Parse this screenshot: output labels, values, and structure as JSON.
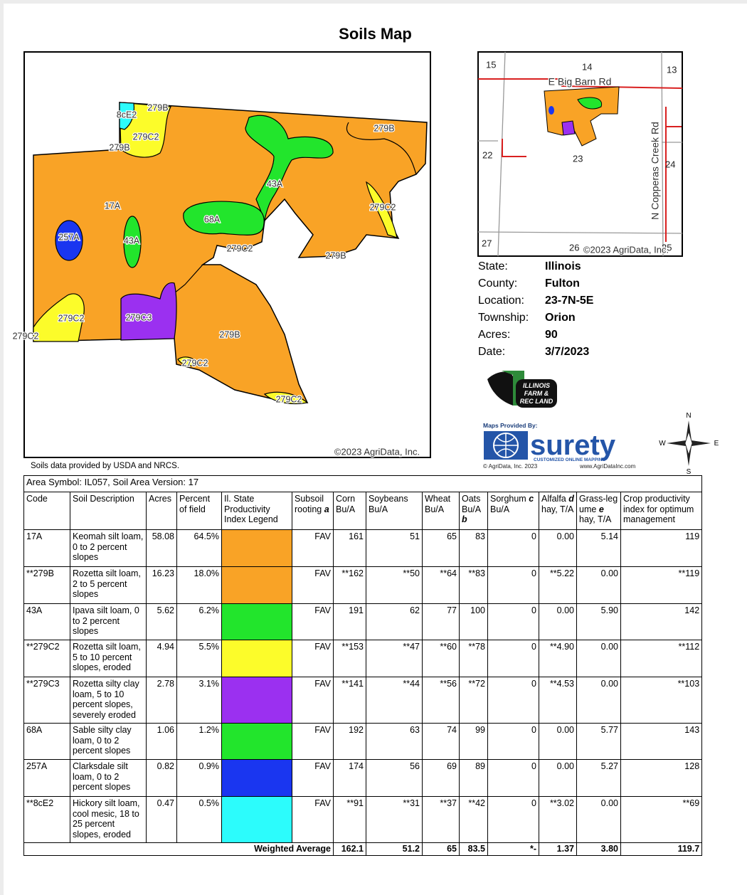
{
  "title": "Soils Map",
  "map": {
    "labels": [
      "8cE2",
      "279B",
      "279C2",
      "279B",
      "279B",
      "43A",
      "17A",
      "68A",
      "279C2",
      "257A",
      "43A",
      "279C2",
      "279B",
      "279C2",
      "279C3",
      "279C2",
      "279B",
      "279C2",
      "279C2"
    ],
    "copyright": "©2023 AgriData, Inc."
  },
  "source_note": "Soils data provided by USDA and NRCS.",
  "locator": {
    "labels": [
      "15",
      "14",
      "13",
      "E Big Barn Rd",
      "22",
      "23",
      "24",
      "27",
      "26",
      "25",
      "N Copperas Creek Rd"
    ],
    "copyright": "©2023 AgriData, Inc."
  },
  "info": [
    [
      "State:",
      "Illinois"
    ],
    [
      "County:",
      "Fulton"
    ],
    [
      "Location:",
      "23-7N-5E"
    ],
    [
      "Township:",
      "Orion"
    ],
    [
      "Acres:",
      "90"
    ],
    [
      "Date:",
      "3/7/2023"
    ]
  ],
  "logos": {
    "farm": [
      "ILLINOIS",
      "FARM &",
      "REC LAND"
    ],
    "maps_provided": "Maps Provided By:",
    "surety": "surety",
    "surety_tag": "CUSTOMIZED ONLINE MAPPING",
    "agridata": "© AgriData, Inc. 2023",
    "url": "www.AgriDataInc.com",
    "compass": [
      "N",
      "E",
      "S",
      "W"
    ]
  },
  "table": {
    "area_symbol": "Area Symbol: IL057, Soil Area Version: 17",
    "headers": [
      {
        "text": "Code"
      },
      {
        "text": "Soil Description"
      },
      {
        "text": "Acres"
      },
      {
        "text": "Percent of field"
      },
      {
        "text": "Il. State Productivity Index Legend"
      },
      {
        "text": "Subsoil rooting",
        "note": "a"
      },
      {
        "text": "Corn Bu/A"
      },
      {
        "text": "Soybeans Bu/A"
      },
      {
        "text": "Wheat Bu/A"
      },
      {
        "text": "Oats Bu/A",
        "note": "b"
      },
      {
        "text": "Sorghum",
        "note": "c",
        "after": "Bu/A"
      },
      {
        "text": "Alfalfa",
        "note": "d",
        "after": "hay, T/A"
      },
      {
        "text": "Grass-leg ume",
        "note": "e",
        "after": "hay, T/A"
      },
      {
        "text": "Crop productivity index for optimum management"
      }
    ],
    "rows": [
      {
        "code": "17A",
        "description": "Keomah silt loam, 0 to 2 percent slopes",
        "acres": "58.08",
        "percent": "64.5%",
        "color": "#f9a326",
        "cells": [
          "FAV",
          "161",
          "51",
          "65",
          "83",
          "0",
          "0.00",
          "5.14",
          "119"
        ]
      },
      {
        "code": "**279B",
        "description": "Rozetta silt loam, 2 to 5 percent slopes",
        "acres": "16.23",
        "percent": "18.0%",
        "color": "#f9a326",
        "cells": [
          "FAV",
          "**162",
          "**50",
          "**64",
          "**83",
          "0",
          "**5.22",
          "0.00",
          "**119"
        ]
      },
      {
        "code": "43A",
        "description": "Ipava silt loam, 0 to 2 percent slopes",
        "acres": "5.62",
        "percent": "6.2%",
        "color": "#22e52c",
        "cells": [
          "FAV",
          "191",
          "62",
          "77",
          "100",
          "0",
          "0.00",
          "5.90",
          "142"
        ]
      },
      {
        "code": "**279C2",
        "description": "Rozetta silt loam, 5 to 10 percent slopes, eroded",
        "acres": "4.94",
        "percent": "5.5%",
        "color": "#fcfc2a",
        "cells": [
          "FAV",
          "**153",
          "**47",
          "**60",
          "**78",
          "0",
          "**4.90",
          "0.00",
          "**112"
        ]
      },
      {
        "code": "**279C3",
        "description": "Rozetta silty clay loam, 5 to 10 percent slopes, severely eroded",
        "acres": "2.78",
        "percent": "3.1%",
        "color": "#9b30f0",
        "cells": [
          "FAV",
          "**141",
          "**44",
          "**56",
          "**72",
          "0",
          "**4.53",
          "0.00",
          "**103"
        ]
      },
      {
        "code": "68A",
        "description": "Sable silty clay loam, 0 to 2 percent slopes",
        "acres": "1.06",
        "percent": "1.2%",
        "color": "#22e52c",
        "cells": [
          "FAV",
          "192",
          "63",
          "74",
          "99",
          "0",
          "0.00",
          "5.77",
          "143"
        ]
      },
      {
        "code": "257A",
        "description": "Clarksdale silt loam, 0 to 2 percent slopes",
        "acres": "0.82",
        "percent": "0.9%",
        "color": "#1a36f0",
        "cells": [
          "FAV",
          "174",
          "56",
          "69",
          "89",
          "0",
          "0.00",
          "5.27",
          "128"
        ]
      },
      {
        "code": "**8cE2",
        "description": "Hickory silt loam, cool mesic, 18 to 25 percent slopes, eroded",
        "acres": "0.47",
        "percent": "0.5%",
        "color": "#2cfcfc",
        "cells": [
          "FAV",
          "**91",
          "**31",
          "**37",
          "**42",
          "0",
          "**3.02",
          "0.00",
          "**69"
        ]
      }
    ],
    "footer": {
      "label": "Weighted Average",
      "values": [
        "162.1",
        "51.2",
        "65",
        "83.5",
        "*-",
        "1.37",
        "3.80",
        "119.7"
      ]
    }
  }
}
